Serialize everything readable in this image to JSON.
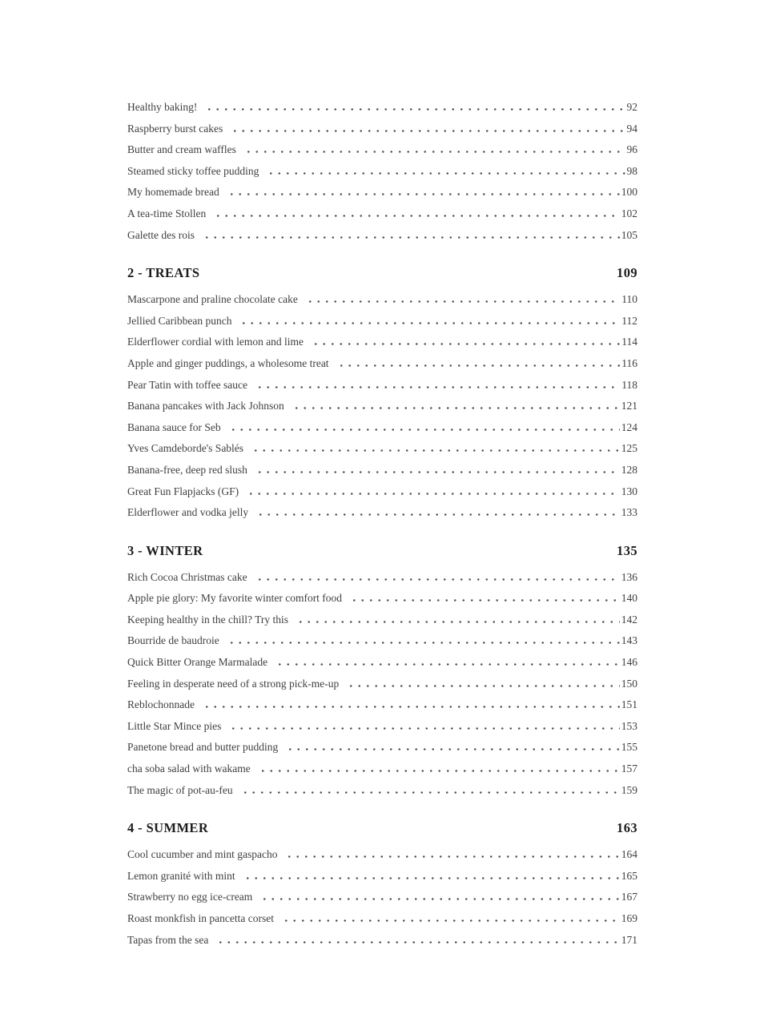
{
  "toc": {
    "text_color": "#3f3f3f",
    "heading_color": "#1c1c1c",
    "sections": [
      {
        "heading": null,
        "entries": [
          {
            "title": "Healthy baking!",
            "page": "92"
          },
          {
            "title": "Raspberry burst cakes",
            "page": "94"
          },
          {
            "title": "Butter and cream waffles",
            "page": "96"
          },
          {
            "title": "Steamed sticky toffee pudding",
            "page": "98"
          },
          {
            "title": "My homemade bread",
            "page": "100"
          },
          {
            "title": "A tea-time Stollen",
            "page": "102"
          },
          {
            "title": "Galette des rois",
            "page": "105"
          }
        ]
      },
      {
        "heading": {
          "title": "2 - TREATS",
          "page": "109"
        },
        "entries": [
          {
            "title": "Mascarpone and praline chocolate cake",
            "page": "110"
          },
          {
            "title": "Jellied Caribbean punch",
            "page": "112"
          },
          {
            "title": "Elderflower cordial with lemon and lime",
            "page": "114"
          },
          {
            "title": "Apple and ginger puddings, a wholesome treat",
            "page": "116"
          },
          {
            "title": "Pear Tatin with toffee sauce",
            "page": "118"
          },
          {
            "title": "Banana pancakes with Jack Johnson",
            "page": "121"
          },
          {
            "title": "Banana sauce for Seb",
            "page": "124"
          },
          {
            "title": "Yves Camdeborde's Sablés",
            "page": "125"
          },
          {
            "title": "Banana-free, deep red slush",
            "page": "128"
          },
          {
            "title": "Great Fun Flapjacks (GF)",
            "page": "130"
          },
          {
            "title": "Elderflower and vodka jelly",
            "page": "133"
          }
        ]
      },
      {
        "heading": {
          "title": "3 - WINTER",
          "page": "135"
        },
        "entries": [
          {
            "title": "Rich Cocoa Christmas cake",
            "page": "136"
          },
          {
            "title": "Apple pie glory: My favorite winter comfort food",
            "page": "140"
          },
          {
            "title": "Keeping healthy in the chill? Try this",
            "page": "142"
          },
          {
            "title": "Bourride de baudroie",
            "page": "143"
          },
          {
            "title": "Quick Bitter Orange Marmalade",
            "page": "146"
          },
          {
            "title": "Feeling in desperate need of a strong pick-me-up",
            "page": "150"
          },
          {
            "title": "Reblochonnade",
            "page": "151"
          },
          {
            "title": "Little Star Mince pies",
            "page": "153"
          },
          {
            "title": "Panetone bread and butter pudding",
            "page": "155"
          },
          {
            "title": "cha soba salad with wakame",
            "page": "157"
          },
          {
            "title": "The magic of pot-au-feu",
            "page": "159"
          }
        ]
      },
      {
        "heading": {
          "title": "4 - SUMMER",
          "page": "163"
        },
        "entries": [
          {
            "title": "Cool cucumber and mint gaspacho",
            "page": "164"
          },
          {
            "title": "Lemon granité with mint",
            "page": "165"
          },
          {
            "title": "Strawberry no egg ice-cream",
            "page": "167"
          },
          {
            "title": "Roast monkfish in pancetta corset",
            "page": "169"
          },
          {
            "title": "Tapas from the sea",
            "page": "171"
          }
        ]
      }
    ]
  }
}
